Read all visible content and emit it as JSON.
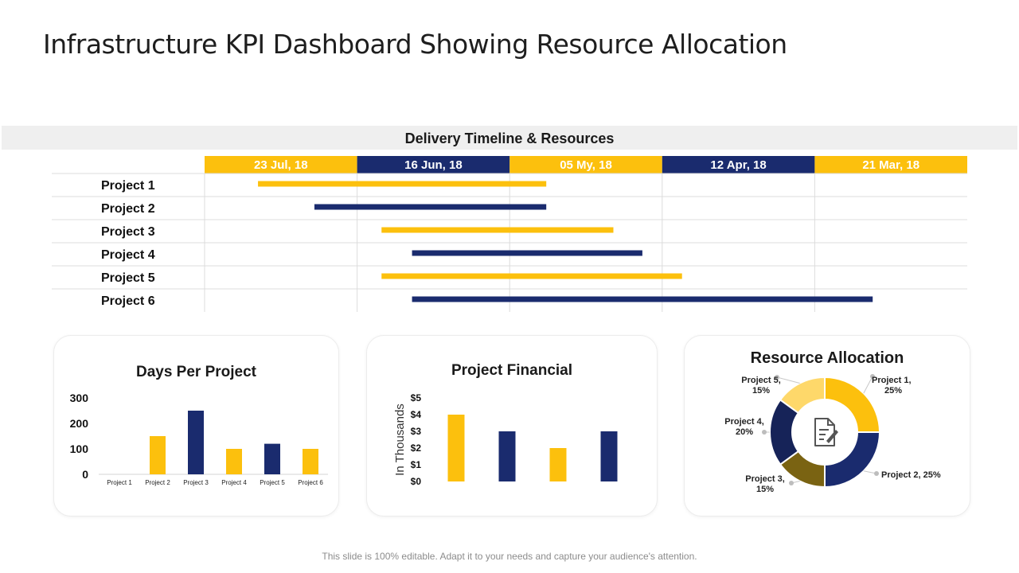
{
  "page": {
    "title": "Infrastructure KPI Dashboard Showing Resource Allocation",
    "footer": "This slide is 100% editable. Adapt it to your needs and capture your audience's attention."
  },
  "colors": {
    "yellow": "#fcc00d",
    "navy": "#1a2b6e",
    "olive": "#7a6312",
    "lightYellow": "#fed86a"
  },
  "chart_data": [
    {
      "type": "gantt",
      "title": "Delivery Timeline & Resources",
      "columns": [
        "23 Jul, 18",
        "16 Jun, 18",
        "05 My, 18",
        "12 Apr, 18",
        "21 Mar, 18"
      ],
      "rows": [
        {
          "name": "Project 1",
          "start": 0.35,
          "end": 2.24
        },
        {
          "name": "Project 2",
          "start": 0.72,
          "end": 2.24
        },
        {
          "name": "Project 3",
          "start": 1.16,
          "end": 2.68
        },
        {
          "name": "Project 4",
          "start": 1.36,
          "end": 2.87
        },
        {
          "name": "Project 5",
          "start": 1.16,
          "end": 3.13
        },
        {
          "name": "Project 6",
          "start": 1.36,
          "end": 4.38
        }
      ]
    },
    {
      "type": "bar",
      "title": "Days Per Project",
      "categories": [
        "Project 1",
        "Project 2",
        "Project 3",
        "Project 4",
        "Project 5",
        "Project 6"
      ],
      "values": [
        0,
        150,
        250,
        100,
        120,
        100
      ],
      "yticks": [
        "0",
        "100",
        "200",
        "300"
      ],
      "ylim": [
        0,
        300
      ]
    },
    {
      "type": "bar",
      "title": "Project Financial",
      "ylabel": "In Thousands",
      "values": [
        4,
        3,
        2,
        3
      ],
      "yticks": [
        "$0",
        "$1",
        "$2",
        "$3",
        "$4",
        "$5"
      ],
      "ylim": [
        0,
        5
      ]
    },
    {
      "type": "pie",
      "title": "Resource Allocation",
      "slices": [
        {
          "name": "Project 1",
          "value": 25,
          "label1": "Project 1,",
          "label2": "25%"
        },
        {
          "name": "Project 2",
          "value": 25,
          "label1": "Project 2, 25%",
          "label2": ""
        },
        {
          "name": "Project 3",
          "value": 15,
          "label1": "Project 3,",
          "label2": "15%"
        },
        {
          "name": "Project 4",
          "value": 20,
          "label1": "Project 4,",
          "label2": "20%"
        },
        {
          "name": "Project 5",
          "value": 15,
          "label1": "Project 5,",
          "label2": "15%"
        }
      ]
    }
  ]
}
